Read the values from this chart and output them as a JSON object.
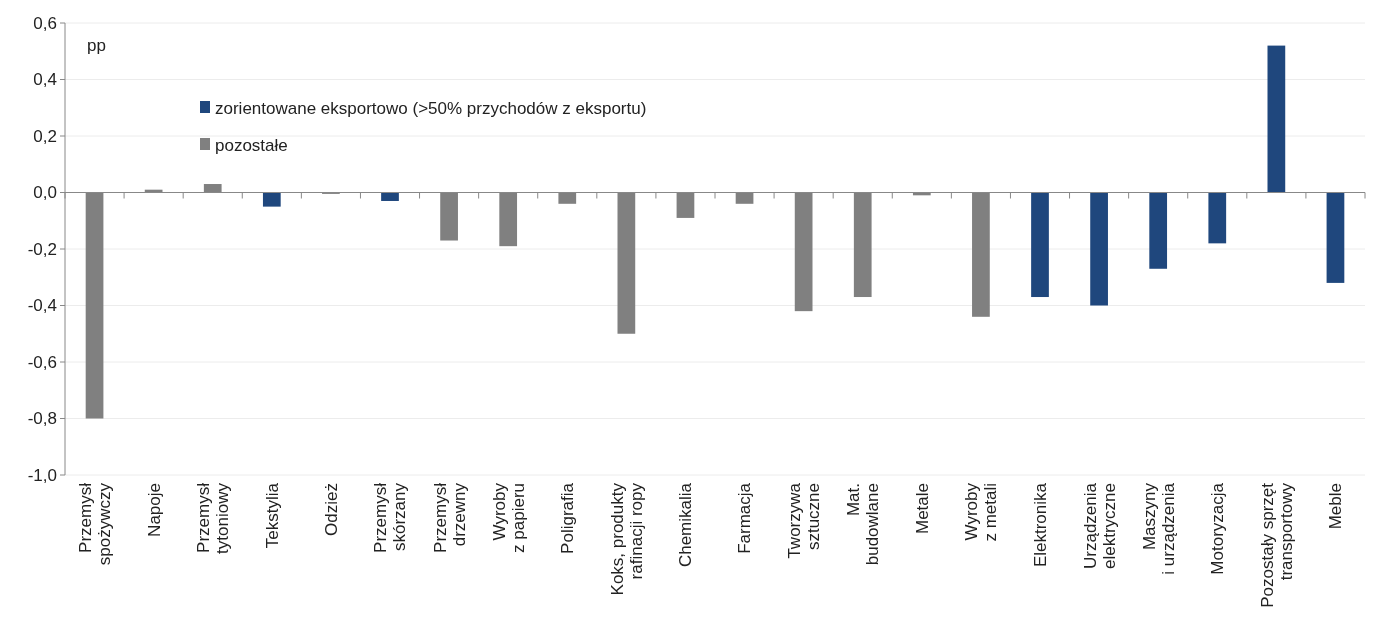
{
  "chart_data": {
    "type": "bar",
    "annotations": [
      "pp"
    ],
    "categories": [
      "Przemysł\nspożywczy",
      "Napoje",
      "Przemysł\ntytoniowy",
      "Tekstylia",
      "Odzież",
      "Przemysł\nskórzany",
      "Przemysł\ndrzewny",
      "Wyroby\nz papieru",
      "Poligrafia",
      "Koks, produkty\nrafinacji ropy",
      "Chemikalia",
      "Farmacja",
      "Tworzywa\nsztuczne",
      "Mat.\nbudowlane",
      "Metale",
      "Wyroby\nz metali",
      "Elektronika",
      "Urządzenia\nelektryczne",
      "Maszyny\ni urządzenia",
      "Motoryzacja",
      "Pozostały sprzęt\ntransportowy",
      "Meble"
    ],
    "series": [
      {
        "name": "zorientowane eksportowo (>50% przychodów z eksportu)",
        "color": "#1f477d",
        "values": [
          null,
          null,
          null,
          -0.05,
          null,
          -0.03,
          null,
          null,
          null,
          null,
          null,
          null,
          null,
          null,
          null,
          null,
          -0.37,
          -0.4,
          -0.27,
          -0.18,
          0.52,
          -0.32
        ]
      },
      {
        "name": "pozostałe",
        "color": "#808080",
        "values": [
          -0.8,
          0.01,
          0.03,
          null,
          -0.005,
          null,
          -0.17,
          -0.19,
          -0.04,
          -0.5,
          -0.09,
          -0.04,
          -0.42,
          -0.37,
          -0.01,
          -0.44,
          null,
          null,
          null,
          null,
          null,
          null
        ]
      }
    ],
    "ylim": [
      -1.0,
      0.6
    ],
    "yticks": [
      {
        "value": -1.0,
        "label": "-1,0"
      },
      {
        "value": -0.8,
        "label": "-0,8"
      },
      {
        "value": -0.6,
        "label": "-0,6"
      },
      {
        "value": -0.4,
        "label": "-0,4"
      },
      {
        "value": -0.2,
        "label": "-0,2"
      },
      {
        "value": 0,
        "label": "0,0"
      },
      {
        "value": 0.2,
        "label": "0,2"
      },
      {
        "value": 0.4,
        "label": "0,4"
      },
      {
        "value": 0.6,
        "label": "0,6"
      }
    ],
    "grid": "y",
    "legend": "top left"
  }
}
